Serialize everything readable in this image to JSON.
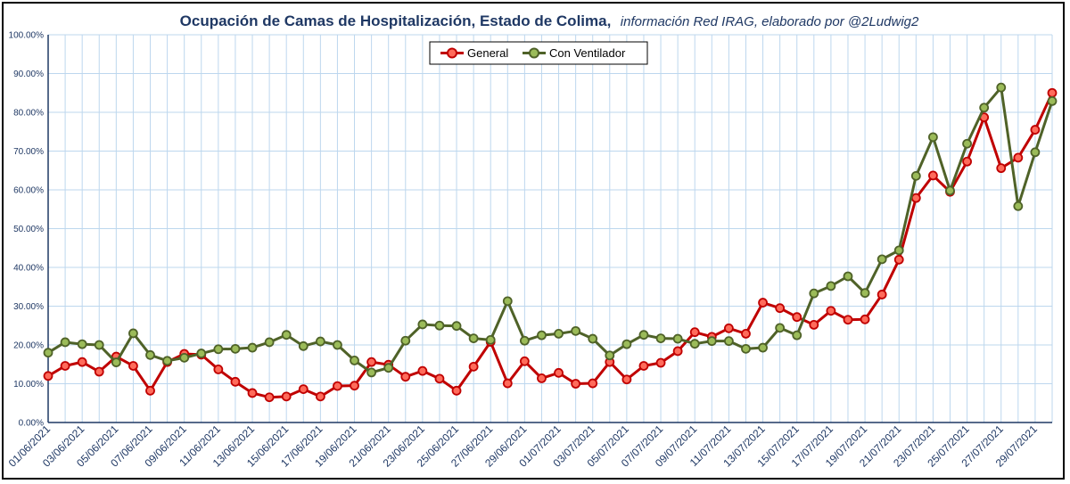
{
  "chart_data": {
    "type": "line",
    "title": "Ocupación de Camas de Hospitalización, Estado de Colima,",
    "subtitle": "información Red IRAG, elaborado por @2Ludwig2",
    "ylim": [
      0,
      100
    ],
    "ytick_step": 10,
    "ytick_format": "percent_2dec",
    "grid": true,
    "legend_position": "top-center",
    "x": [
      "01/06/2021",
      "02/06/2021",
      "03/06/2021",
      "04/06/2021",
      "05/06/2021",
      "06/06/2021",
      "07/06/2021",
      "08/06/2021",
      "09/06/2021",
      "10/06/2021",
      "11/06/2021",
      "12/06/2021",
      "13/06/2021",
      "14/06/2021",
      "15/06/2021",
      "16/06/2021",
      "17/06/2021",
      "18/06/2021",
      "19/06/2021",
      "20/06/2021",
      "21/06/2021",
      "22/06/2021",
      "23/06/2021",
      "24/06/2021",
      "25/06/2021",
      "26/06/2021",
      "27/06/2021",
      "28/06/2021",
      "29/06/2021",
      "30/06/2021",
      "01/07/2021",
      "02/07/2021",
      "03/07/2021",
      "04/07/2021",
      "05/07/2021",
      "06/07/2021",
      "07/07/2021",
      "08/07/2021",
      "09/07/2021",
      "10/07/2021",
      "11/07/2021",
      "12/07/2021",
      "13/07/2021",
      "14/07/2021",
      "15/07/2021",
      "16/07/2021",
      "17/07/2021",
      "18/07/2021",
      "19/07/2021",
      "20/07/2021",
      "21/07/2021",
      "22/07/2021",
      "23/07/2021",
      "24/07/2021",
      "25/07/2021",
      "26/07/2021",
      "27/07/2021",
      "28/07/2021",
      "29/07/2021",
      "30/07/2021"
    ],
    "x_tick_labels": [
      "01/06/2021",
      "03/06/2021",
      "05/06/2021",
      "07/06/2021",
      "09/06/2021",
      "11/06/2021",
      "13/06/2021",
      "15/06/2021",
      "17/06/2021",
      "19/06/2021",
      "21/06/2021",
      "23/06/2021",
      "25/06/2021",
      "27/06/2021",
      "29/06/2021",
      "01/07/2021",
      "03/07/2021",
      "05/07/2021",
      "07/07/2021",
      "09/07/2021",
      "11/07/2021",
      "13/07/2021",
      "15/07/2021",
      "17/07/2021",
      "19/07/2021",
      "21/07/2021",
      "23/07/2021",
      "25/07/2021",
      "27/07/2021",
      "29/07/2021"
    ],
    "series": [
      {
        "name": "General",
        "color": "#c00000",
        "marker_fill": "#ff6b5b",
        "values": [
          12.0,
          14.6,
          15.6,
          13.1,
          17.0,
          14.6,
          8.2,
          15.6,
          17.7,
          17.5,
          13.7,
          10.5,
          7.6,
          6.5,
          6.7,
          8.6,
          6.7,
          9.4,
          9.5,
          15.6,
          14.9,
          11.8,
          13.3,
          11.3,
          8.2,
          14.4,
          20.8,
          10.1,
          15.8,
          11.4,
          12.8,
          10.0,
          10.1,
          15.6,
          11.1,
          14.6,
          15.4,
          18.4,
          23.3,
          22.1,
          24.3,
          22.9,
          30.9,
          29.5,
          27.2,
          25.2,
          28.8,
          26.5,
          26.6,
          33.0,
          42.0,
          57.9,
          63.7,
          59.5,
          67.3,
          78.7,
          65.6,
          68.3,
          75.5,
          85.0
        ]
      },
      {
        "name": "Con Ventilador",
        "color": "#4f6228",
        "marker_fill": "#9bbb59",
        "values": [
          18.0,
          20.7,
          20.2,
          20.0,
          15.5,
          23.0,
          17.4,
          15.9,
          16.7,
          17.8,
          18.9,
          19.0,
          19.3,
          20.7,
          22.6,
          19.7,
          20.9,
          20.0,
          16.0,
          12.9,
          14.1,
          21.1,
          25.3,
          25.0,
          24.9,
          21.7,
          21.3,
          31.3,
          21.1,
          22.5,
          22.9,
          23.6,
          21.6,
          17.3,
          20.2,
          22.6,
          21.7,
          21.6,
          20.3,
          21.0,
          21.0,
          19.0,
          19.3,
          24.4,
          22.5,
          33.3,
          35.2,
          37.7,
          33.4,
          42.1,
          44.4,
          63.6,
          73.6,
          59.8,
          71.9,
          81.2,
          86.4,
          55.8,
          69.7,
          82.9
        ]
      }
    ]
  }
}
